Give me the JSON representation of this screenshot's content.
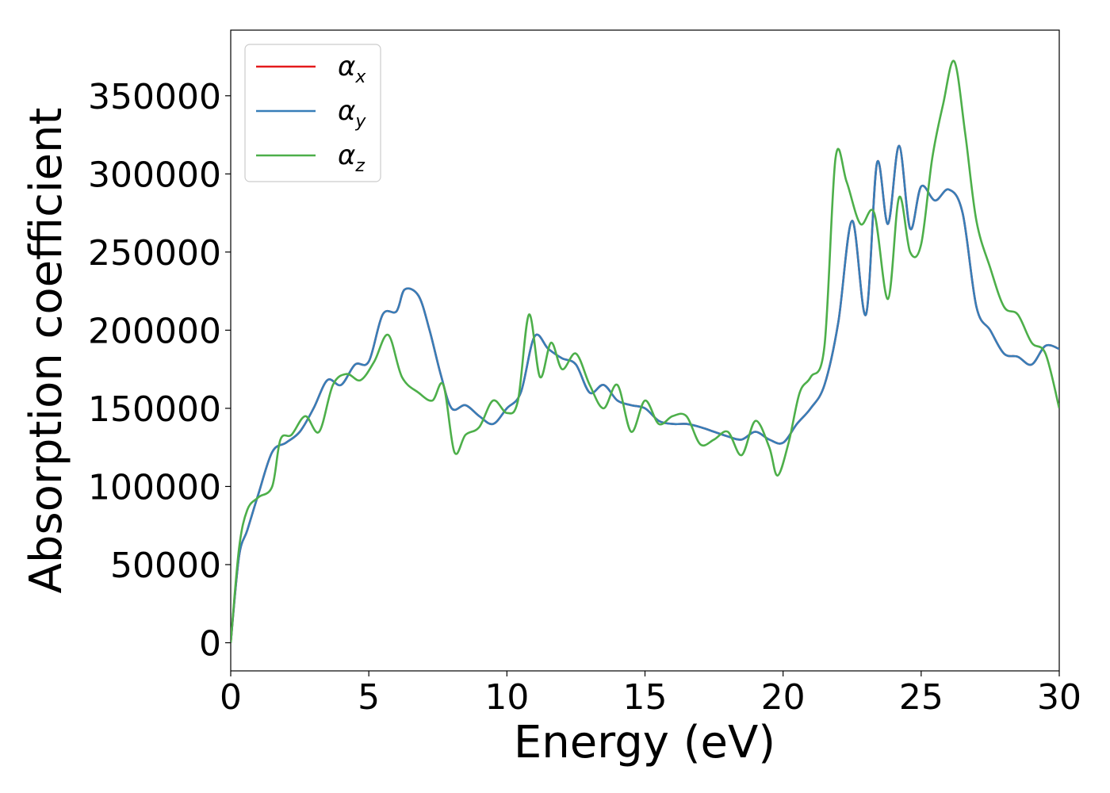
{
  "chart_data": {
    "type": "line",
    "xlabel": "Energy (eV)",
    "ylabel": "Absorption coefficient",
    "xlim": [
      0,
      30
    ],
    "ylim": [
      -18000,
      392000
    ],
    "xticks": [
      0,
      5,
      10,
      15,
      20,
      25,
      30
    ],
    "yticks": [
      0,
      50000,
      100000,
      150000,
      200000,
      250000,
      300000,
      350000
    ],
    "grid": false,
    "legend_position": "top-left",
    "series": [
      {
        "name": "α",
        "subscript": "x",
        "color": "#e41a1c",
        "x": [
          0,
          0.3,
          0.6,
          1,
          1.5,
          2,
          2.5,
          3,
          3.5,
          4,
          4.5,
          5,
          5.5,
          6,
          6.3,
          6.8,
          7.2,
          7.6,
          8,
          8.5,
          9,
          9.5,
          10,
          10.5,
          11,
          11.5,
          12,
          12.5,
          13,
          13.5,
          14,
          14.5,
          15,
          15.5,
          16,
          16.5,
          17,
          17.5,
          18,
          18.5,
          19,
          19.5,
          20,
          20.5,
          21,
          21.5,
          22,
          22.5,
          23,
          23.4,
          23.8,
          24.2,
          24.6,
          25,
          25.5,
          26,
          26.5,
          27,
          27.5,
          28,
          28.5,
          29,
          29.5,
          30
        ],
        "values": [
          0,
          55000,
          72000,
          95000,
          122000,
          128000,
          135000,
          150000,
          168000,
          165000,
          178000,
          180000,
          210000,
          212000,
          226000,
          222000,
          200000,
          172000,
          150000,
          152000,
          145000,
          140000,
          150000,
          160000,
          196000,
          188000,
          182000,
          178000,
          160000,
          165000,
          155000,
          152000,
          150000,
          142000,
          140000,
          140000,
          138000,
          135000,
          132000,
          130000,
          135000,
          130000,
          128000,
          140000,
          150000,
          165000,
          205000,
          270000,
          210000,
          307000,
          268000,
          318000,
          265000,
          292000,
          283000,
          290000,
          275000,
          215000,
          200000,
          185000,
          183000,
          178000,
          190000,
          188000
        ]
      },
      {
        "name": "α",
        "subscript": "y",
        "color": "#377eb8",
        "x": [
          0,
          0.3,
          0.6,
          1,
          1.5,
          2,
          2.5,
          3,
          3.5,
          4,
          4.5,
          5,
          5.5,
          6,
          6.3,
          6.8,
          7.2,
          7.6,
          8,
          8.5,
          9,
          9.5,
          10,
          10.5,
          11,
          11.5,
          12,
          12.5,
          13,
          13.5,
          14,
          14.5,
          15,
          15.5,
          16,
          16.5,
          17,
          17.5,
          18,
          18.5,
          19,
          19.5,
          20,
          20.5,
          21,
          21.5,
          22,
          22.5,
          23,
          23.4,
          23.8,
          24.2,
          24.6,
          25,
          25.5,
          26,
          26.5,
          27,
          27.5,
          28,
          28.5,
          29,
          29.5,
          30
        ],
        "values": [
          0,
          55000,
          72000,
          95000,
          122000,
          128000,
          135000,
          150000,
          168000,
          165000,
          178000,
          180000,
          210000,
          212000,
          226000,
          222000,
          200000,
          172000,
          150000,
          152000,
          145000,
          140000,
          150000,
          160000,
          196000,
          188000,
          182000,
          178000,
          160000,
          165000,
          155000,
          152000,
          150000,
          142000,
          140000,
          140000,
          138000,
          135000,
          132000,
          130000,
          135000,
          130000,
          128000,
          140000,
          150000,
          165000,
          205000,
          270000,
          210000,
          307000,
          268000,
          318000,
          265000,
          292000,
          283000,
          290000,
          275000,
          215000,
          200000,
          185000,
          183000,
          178000,
          190000,
          188000
        ]
      },
      {
        "name": "α",
        "subscript": "z",
        "color": "#4daf4a",
        "x": [
          0,
          0.3,
          0.6,
          1,
          1.5,
          1.8,
          2.2,
          2.7,
          3.2,
          3.7,
          4.2,
          4.7,
          5.2,
          5.7,
          6.2,
          6.8,
          7.3,
          7.7,
          8.1,
          8.5,
          9,
          9.5,
          10,
          10.4,
          10.8,
          11.2,
          11.6,
          12,
          12.5,
          13,
          13.5,
          14,
          14.5,
          15,
          15.5,
          16,
          16.5,
          17,
          17.5,
          18,
          18.5,
          19,
          19.5,
          19.8,
          20.2,
          20.6,
          21,
          21.5,
          21.9,
          22.3,
          22.8,
          23.3,
          23.8,
          24.2,
          24.6,
          25,
          25.4,
          25.8,
          26.2,
          26.6,
          27,
          27.5,
          28,
          28.5,
          29,
          29.5,
          30
        ],
        "values": [
          0,
          60000,
          85000,
          93000,
          100000,
          130000,
          133000,
          145000,
          135000,
          165000,
          172000,
          168000,
          180000,
          197000,
          170000,
          160000,
          155000,
          165000,
          122000,
          133000,
          138000,
          155000,
          147000,
          155000,
          210000,
          170000,
          192000,
          175000,
          185000,
          165000,
          150000,
          165000,
          135000,
          155000,
          140000,
          145000,
          145000,
          127000,
          130000,
          135000,
          120000,
          142000,
          125000,
          107000,
          128000,
          160000,
          170000,
          190000,
          310000,
          295000,
          268000,
          275000,
          220000,
          285000,
          250000,
          255000,
          310000,
          345000,
          372000,
          325000,
          270000,
          240000,
          215000,
          210000,
          192000,
          185000,
          150000
        ]
      }
    ]
  }
}
